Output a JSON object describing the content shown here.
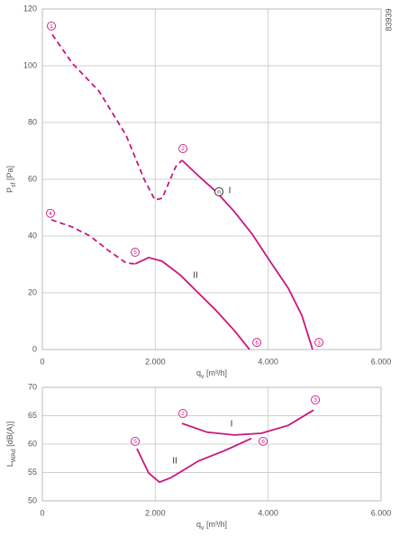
{
  "figure_id": "83939",
  "chart_data": [
    {
      "type": "line",
      "xlim": [
        0,
        6000
      ],
      "ylim": [
        0,
        120
      ],
      "xticks": [
        0,
        {
          "value": 2000,
          "label": "2.000"
        },
        {
          "value": 4000,
          "label": "4.000"
        },
        {
          "value": 6000,
          "label": "6.000"
        }
      ],
      "yticks": [
        0,
        20,
        40,
        60,
        80,
        100,
        120
      ],
      "grid": true,
      "xlabel": {
        "main": "q",
        "sub": "v",
        "unit": " [m³/h]"
      },
      "ylabel": {
        "main": "P",
        "sub": "sf",
        "unit": " [Pa]"
      },
      "series": [
        {
          "name": "I",
          "color": "#c8177f",
          "label_x": 3320,
          "label_y": 55.9,
          "segments": [
            {
              "style": "dashed",
              "x": [
                175,
                527,
                1005,
                1484,
                1803,
                1995,
                2123,
                2362,
                2474
              ],
              "y": [
                111,
                101,
                91,
                75.5,
                60,
                52.7,
                53.3,
                64.4,
                66.7
              ]
            },
            {
              "style": "solid",
              "x": [
                2474,
                2761,
                3080,
                3400,
                3719,
                4038,
                4357,
                4597,
                4788
              ],
              "y": [
                66.7,
                61.3,
                55.6,
                48.6,
                40.6,
                31,
                21.6,
                12,
                0
              ]
            }
          ]
        },
        {
          "name": "II",
          "color": "#c8177f",
          "label_x": 2713,
          "label_y": 26,
          "segments": [
            {
              "style": "dashed",
              "x": [
                160,
                527,
                846,
                1165,
                1484,
                1644
              ],
              "y": [
                45.7,
                43.2,
                40,
                35,
                30.5,
                30.2
              ]
            },
            {
              "style": "solid",
              "x": [
                1644,
                1883,
                2123,
                2442,
                2761,
                3080,
                3400,
                3671
              ],
              "y": [
                30.2,
                32.4,
                31.1,
                26.3,
                20,
                13.7,
                6.7,
                0
              ]
            }
          ]
        }
      ],
      "markers": [
        {
          "label": "1",
          "x": 160,
          "y": 114,
          "color": "#c8177f"
        },
        {
          "label": "2",
          "x": 2490,
          "y": 70.8,
          "color": "#c8177f"
        },
        {
          "label": "3",
          "x": 4900,
          "y": 2.5,
          "color": "#c8177f"
        },
        {
          "label": "4",
          "x": 144,
          "y": 48,
          "color": "#c8177f"
        },
        {
          "label": "5",
          "x": 1644,
          "y": 34.3,
          "color": "#c8177f"
        },
        {
          "label": "6",
          "x": 3800,
          "y": 2.5,
          "color": "#c8177f"
        },
        {
          "label": "n",
          "x": 3128,
          "y": 55.6,
          "color": "#222222"
        }
      ]
    },
    {
      "type": "line",
      "xlim": [
        0,
        6000
      ],
      "ylim": [
        50,
        70
      ],
      "xticks": [
        0,
        {
          "value": 2000,
          "label": "2.000"
        },
        {
          "value": 4000,
          "label": "4.000"
        },
        {
          "value": 6000,
          "label": "6.000"
        }
      ],
      "yticks": [
        50,
        55,
        60,
        65,
        70
      ],
      "grid": true,
      "xlabel": {
        "main": "q",
        "sub": "v",
        "unit": " [m³/h]"
      },
      "ylabel": {
        "main": "L",
        "sub": "WAd",
        "unit": " [dB(A)]"
      },
      "series": [
        {
          "name": "I",
          "color": "#c8177f",
          "label_x": 3352,
          "label_y": 63.5,
          "segments": [
            {
              "style": "solid",
              "x": [
                2474,
                2920,
                3400,
                3878,
                4357,
                4804
              ],
              "y": [
                63.65,
                62.1,
                61.6,
                61.9,
                63.3,
                66
              ]
            }
          ]
        },
        {
          "name": "II",
          "color": "#c8177f",
          "label_x": 2346,
          "label_y": 57,
          "segments": [
            {
              "style": "solid",
              "x": [
                1676,
                1883,
                2075,
                2282,
                2761,
                3240,
                3703
              ],
              "y": [
                59.2,
                54.9,
                53.3,
                54.1,
                57,
                58.9,
                61
              ]
            }
          ]
        }
      ],
      "markers": [
        {
          "label": "2",
          "x": 2490,
          "y": 65.4,
          "color": "#c8177f"
        },
        {
          "label": "3",
          "x": 4836,
          "y": 67.8,
          "color": "#c8177f"
        },
        {
          "label": "5",
          "x": 1644,
          "y": 60.5,
          "color": "#c8177f"
        },
        {
          "label": "6",
          "x": 3910,
          "y": 60.5,
          "color": "#c8177f"
        }
      ]
    }
  ]
}
